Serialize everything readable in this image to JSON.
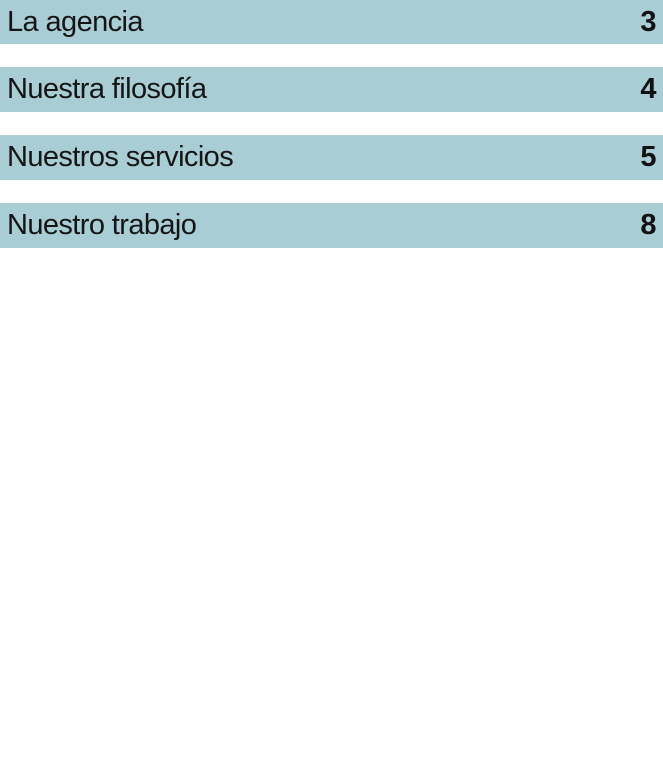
{
  "page": {
    "background_color": "#ffffff",
    "bar_color": "#a8cdd5",
    "text_color": "#151515"
  },
  "toc": {
    "items": [
      {
        "label": "La agencia",
        "page": "3"
      },
      {
        "label": "Nuestra filosofía",
        "page": "4"
      },
      {
        "label": "Nuestros servicios",
        "page": "5"
      },
      {
        "label": "Nuestro trabajo",
        "page": "8"
      }
    ]
  }
}
